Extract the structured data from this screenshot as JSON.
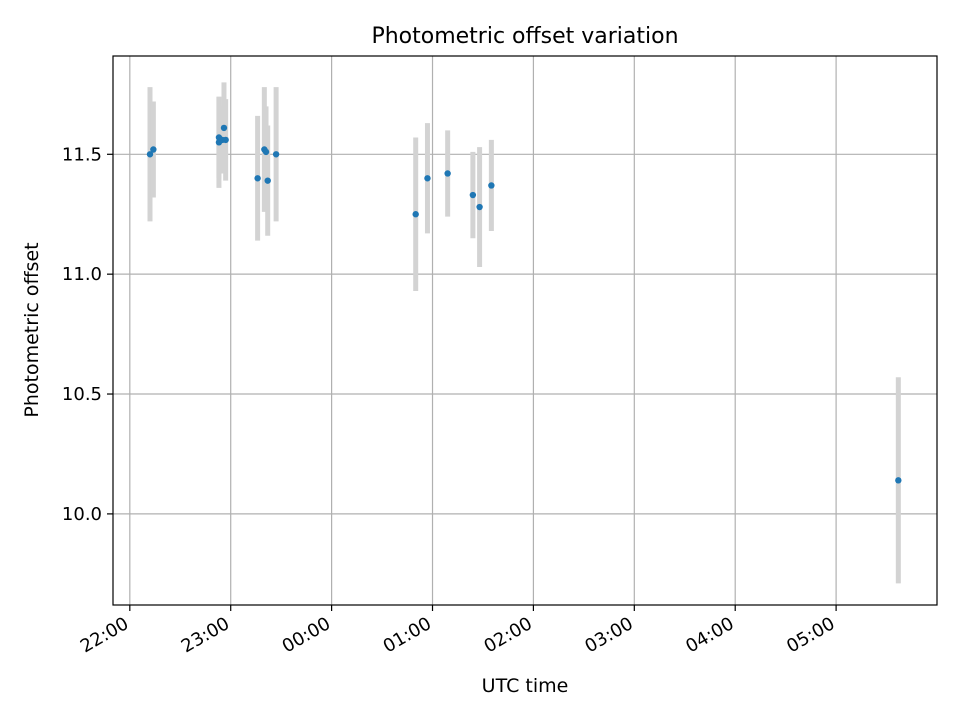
{
  "chart_data": {
    "type": "scatter",
    "title": "Photometric offset variation",
    "xlabel": "UTC time",
    "ylabel": "Photometric offset",
    "grid": true,
    "x_tick_labels": [
      "22:00",
      "23:00",
      "00:00",
      "01:00",
      "02:00",
      "03:00",
      "04:00",
      "05:00"
    ],
    "y_tick_labels": [
      "10.0",
      "10.5",
      "11.0",
      "11.5"
    ],
    "y_ticks": [
      10.0,
      10.5,
      11.0,
      11.5
    ],
    "ylim": [
      9.62,
      11.91
    ],
    "xlim": [
      "21:50",
      "06:00"
    ],
    "colors": {
      "point": "#1f77b4",
      "errorbar": "#d3d3d3",
      "grid": "#b0b0b0"
    },
    "points": [
      {
        "t": "22:12",
        "y": 11.5,
        "err": 0.28
      },
      {
        "t": "22:14",
        "y": 11.52,
        "err": 0.2
      },
      {
        "t": "22:53",
        "y": 11.57,
        "err": 0.17
      },
      {
        "t": "22:53",
        "y": 11.55,
        "err": 0.19
      },
      {
        "t": "22:55",
        "y": 11.56,
        "err": 0.14
      },
      {
        "t": "22:56",
        "y": 11.61,
        "err": 0.19
      },
      {
        "t": "22:57",
        "y": 11.56,
        "err": 0.17
      },
      {
        "t": "23:16",
        "y": 11.4,
        "err": 0.26
      },
      {
        "t": "23:20",
        "y": 11.52,
        "err": 0.26
      },
      {
        "t": "23:21",
        "y": 11.51,
        "err": 0.19
      },
      {
        "t": "23:22",
        "y": 11.39,
        "err": 0.23
      },
      {
        "t": "23:27",
        "y": 11.5,
        "err": 0.28
      },
      {
        "t": "00:50",
        "y": 11.25,
        "err": 0.32
      },
      {
        "t": "00:57",
        "y": 11.4,
        "err": 0.23
      },
      {
        "t": "01:09",
        "y": 11.42,
        "err": 0.18
      },
      {
        "t": "01:24",
        "y": 11.33,
        "err": 0.18
      },
      {
        "t": "01:28",
        "y": 11.28,
        "err": 0.25
      },
      {
        "t": "01:35",
        "y": 11.37,
        "err": 0.19
      },
      {
        "t": "05:37",
        "y": 10.14,
        "err": 0.43
      }
    ]
  }
}
